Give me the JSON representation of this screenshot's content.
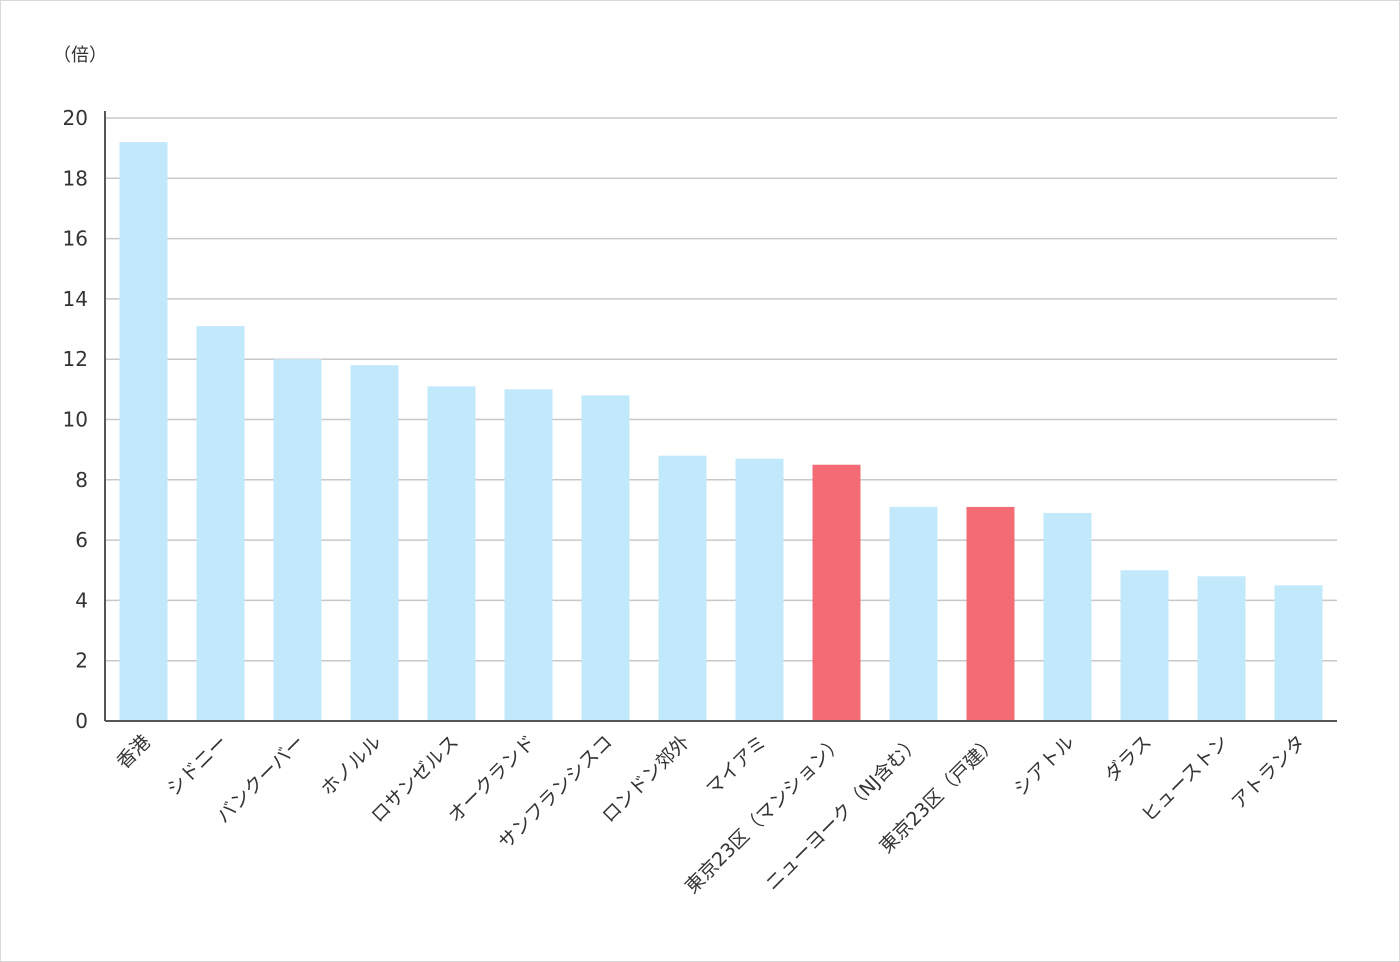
{
  "chart_data": {
    "type": "bar",
    "title": "",
    "xlabel": "",
    "ylabel": "",
    "unit_label": "（倍）",
    "ylim": [
      0,
      20
    ],
    "yticks": [
      0,
      2,
      4,
      6,
      8,
      10,
      12,
      14,
      16,
      18,
      20
    ],
    "grid": true,
    "legend": "none",
    "categories": [
      "香港",
      "シドニー",
      "バンクーバー",
      "ホノルル",
      "ロサンゼルス",
      "オークランド",
      "サンフランシスコ",
      "ロンドン郊外",
      "マイアミ",
      "東京23区（マンション）",
      "ニューヨーク（NJ含む）",
      "東京23区（戸建）",
      "シアトル",
      "ダラス",
      "ヒューストン",
      "アトランタ"
    ],
    "values": [
      19.2,
      13.1,
      12.0,
      11.8,
      11.1,
      11.0,
      10.8,
      8.8,
      8.7,
      8.5,
      7.1,
      7.1,
      6.9,
      5.0,
      4.8,
      4.5
    ],
    "highlight": [
      false,
      false,
      false,
      false,
      false,
      false,
      false,
      false,
      false,
      true,
      false,
      true,
      false,
      false,
      false,
      false
    ],
    "colors": {
      "bar": "#c2e8fc",
      "highlight": "#f26b75",
      "grid": "#c8c8c8",
      "axis": "#555555"
    }
  }
}
